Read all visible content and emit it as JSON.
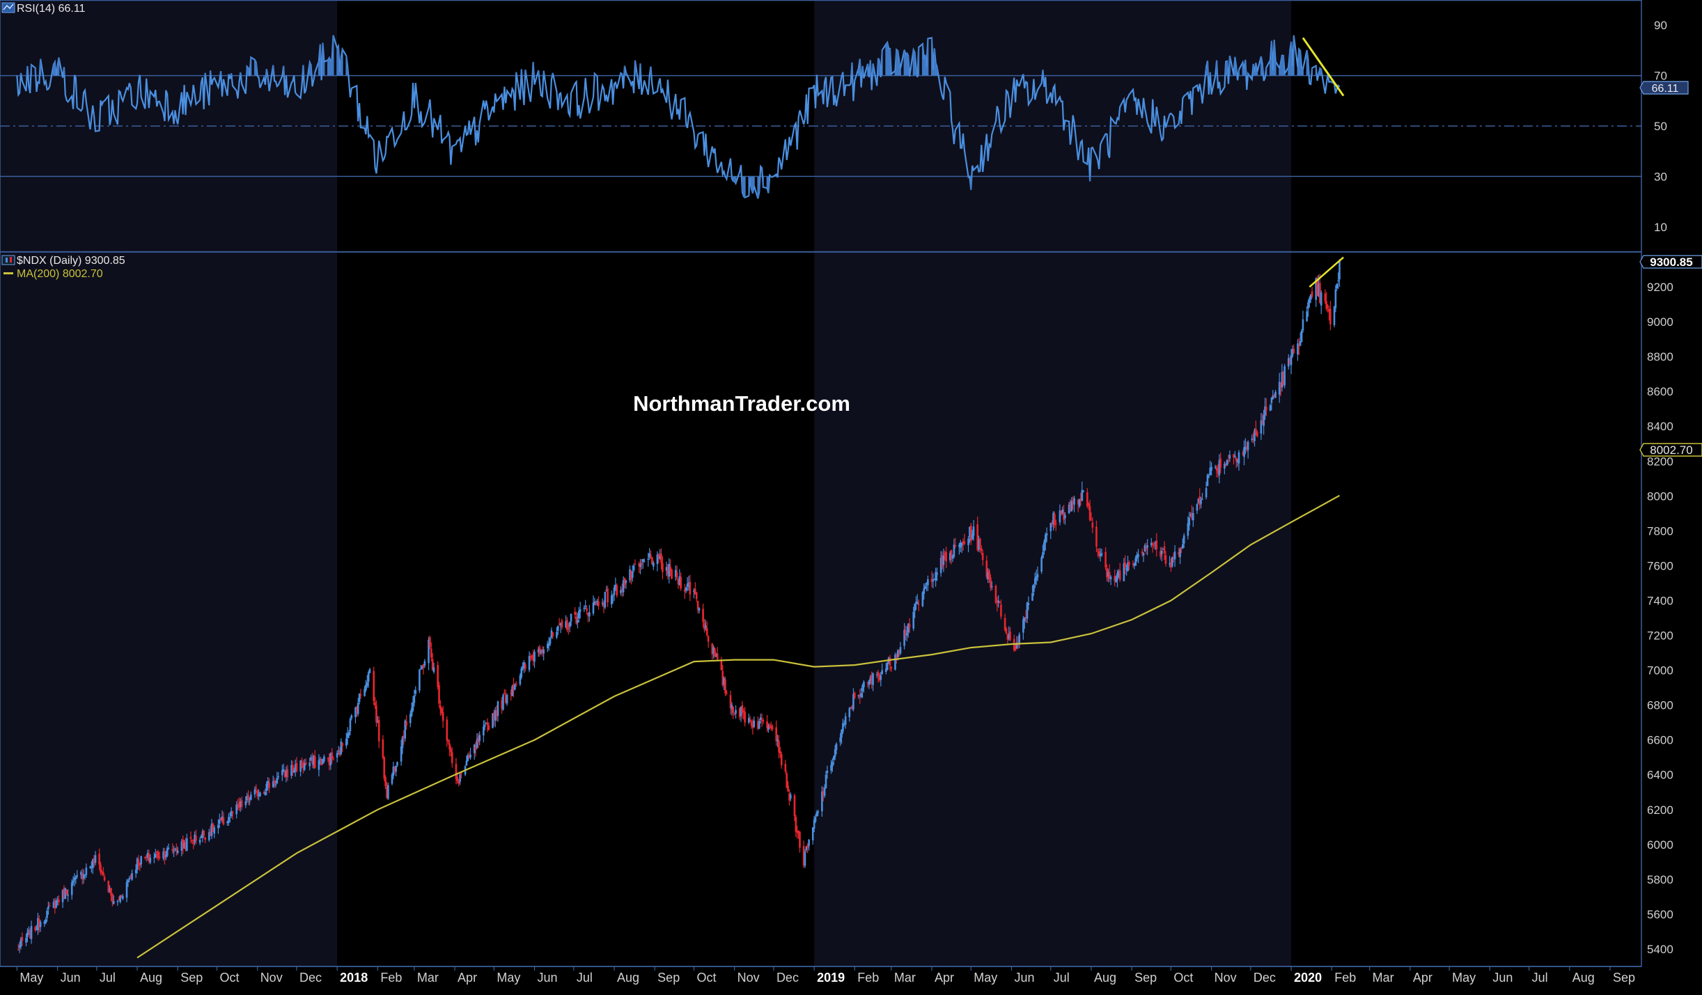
{
  "watermark": "NorthmanTrader.com",
  "colors": {
    "background": "#000000",
    "shade": "#0e0f1c",
    "frame": "#3a5f9c",
    "rsi_line": "#4a8fe0",
    "rsi_fill": "#3f78c4",
    "up_bar": "#4a8fe0",
    "down_bar": "#e8262e",
    "ma_line": "#c9c23c",
    "trend_line": "#e5e52a",
    "axis_text": "#d0d0d0"
  },
  "rsi_panel": {
    "legend_icon": "rsi-indicator-icon",
    "legend_label": "RSI(14)",
    "legend_value": "66.11",
    "last_value_tag": "66.11"
  },
  "price_panel": {
    "legend_icon": "candlestick-icon",
    "legend_label": "$NDX (Daily)",
    "legend_value": "9300.85",
    "ma_label": "MA(200)",
    "ma_value": "8002.70",
    "price_tag": "9300.85",
    "ma_tag": "8002.70"
  },
  "chart_data": [
    {
      "type": "line",
      "name": "RSI(14)",
      "last": 66.11,
      "ylim": [
        0,
        100
      ],
      "yticks": [
        10,
        30,
        50,
        70,
        90
      ],
      "reference_lines": [
        30,
        50,
        70
      ],
      "shade": "fill above 70 and below 30",
      "x": [
        "2017-05",
        "2017-06",
        "2017-07",
        "2017-08",
        "2017-09",
        "2017-10",
        "2017-11",
        "2017-12",
        "2018-01",
        "2018-02",
        "2018-03",
        "2018-04",
        "2018-05",
        "2018-06",
        "2018-07",
        "2018-08",
        "2018-09",
        "2018-10",
        "2018-11",
        "2018-12",
        "2019-01",
        "2019-02",
        "2019-03",
        "2019-04",
        "2019-05",
        "2019-06",
        "2019-07",
        "2019-08",
        "2019-09",
        "2019-10",
        "2019-11",
        "2019-12",
        "2020-01",
        "2020-02"
      ],
      "values": [
        68,
        72,
        52,
        64,
        58,
        66,
        70,
        64,
        82,
        36,
        62,
        38,
        58,
        68,
        60,
        66,
        70,
        48,
        28,
        30,
        62,
        68,
        76,
        78,
        30,
        62,
        66,
        34,
        58,
        50,
        70,
        72,
        80,
        66
      ],
      "trendline": {
        "x": [
          "2020-01-10",
          "2020-02-10"
        ],
        "y": [
          85,
          62
        ]
      }
    },
    {
      "type": "candlestick",
      "name": "$NDX (Daily)",
      "last": 9300.85,
      "ylim": [
        5300,
        9400
      ],
      "yticks": [
        5400,
        5600,
        5800,
        6000,
        6200,
        6400,
        6600,
        6800,
        7000,
        7200,
        7400,
        7600,
        7800,
        8000,
        8200,
        8400,
        8600,
        8800,
        9000,
        9200
      ],
      "x_ticks": [
        "May",
        "Jun",
        "Jul",
        "Aug",
        "Sep",
        "Oct",
        "Nov",
        "Dec",
        "2018",
        "Feb",
        "Mar",
        "Apr",
        "May",
        "Jun",
        "Jul",
        "Aug",
        "Sep",
        "Oct",
        "Nov",
        "Dec",
        "2019",
        "Feb",
        "Mar",
        "Apr",
        "May",
        "Jun",
        "Jul",
        "Aug",
        "Sep",
        "Oct",
        "Nov",
        "Dec",
        "2020",
        "Feb",
        "Mar",
        "Apr",
        "May",
        "Jun",
        "Jul",
        "Aug",
        "Sep"
      ],
      "x": [
        "2017-05-01",
        "2017-06-01",
        "2017-07-01",
        "2017-07-15",
        "2017-08-01",
        "2017-09-01",
        "2017-10-01",
        "2017-11-01",
        "2017-12-01",
        "2018-01-01",
        "2018-01-26",
        "2018-02-08",
        "2018-03-12",
        "2018-04-02",
        "2018-05-01",
        "2018-06-01",
        "2018-07-01",
        "2018-08-01",
        "2018-08-29",
        "2018-10-01",
        "2018-10-29",
        "2018-11-15",
        "2018-12-01",
        "2018-12-24",
        "2019-01-15",
        "2019-02-01",
        "2019-03-01",
        "2019-04-01",
        "2019-05-03",
        "2019-06-03",
        "2019-07-01",
        "2019-07-26",
        "2019-08-15",
        "2019-09-15",
        "2019-10-01",
        "2019-11-01",
        "2019-12-01",
        "2020-01-02",
        "2020-01-20",
        "2020-02-01",
        "2020-02-07"
      ],
      "values": [
        5400,
        5680,
        5920,
        5640,
        5900,
        5980,
        6100,
        6300,
        6450,
        6500,
        7000,
        6300,
        7150,
        6350,
        6750,
        7100,
        7300,
        7450,
        7650,
        7450,
        6800,
        6700,
        6700,
        5900,
        6500,
        6850,
        7050,
        7550,
        7800,
        7100,
        7850,
        8000,
        7500,
        7750,
        7600,
        8150,
        8300,
        8800,
        9200,
        9000,
        9300
      ],
      "moving_average": {
        "name": "MA(200)",
        "last": 8002.7,
        "x": [
          "2017-08-01",
          "2017-10-01",
          "2017-12-01",
          "2018-02-01",
          "2018-04-01",
          "2018-06-01",
          "2018-08-01",
          "2018-10-01",
          "2018-11-01",
          "2018-12-01",
          "2019-01-01",
          "2019-02-01",
          "2019-03-01",
          "2019-04-01",
          "2019-05-01",
          "2019-06-01",
          "2019-07-01",
          "2019-08-01",
          "2019-09-01",
          "2019-10-01",
          "2019-11-01",
          "2019-12-01",
          "2020-01-01",
          "2020-02-07"
        ],
        "values": [
          5350,
          5650,
          5950,
          6200,
          6400,
          6600,
          6850,
          7050,
          7060,
          7060,
          7020,
          7030,
          7060,
          7090,
          7130,
          7150,
          7160,
          7210,
          7290,
          7400,
          7560,
          7720,
          7850,
          8002.7
        ]
      },
      "trendline": {
        "x": [
          "2020-01-15",
          "2020-02-10"
        ],
        "y": [
          9200,
          9370
        ]
      }
    }
  ]
}
